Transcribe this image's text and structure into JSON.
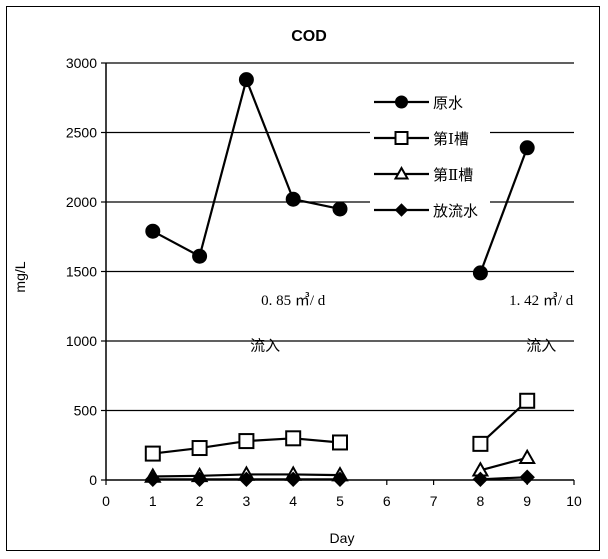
{
  "chart_data": {
    "type": "line",
    "title": "COD",
    "xlabel": "Day",
    "ylabel": "mg/L",
    "xlim": [
      0,
      10
    ],
    "ylim": [
      0,
      3000
    ],
    "xticks": [
      "0",
      "1",
      "2",
      "3",
      "4",
      "5",
      "6",
      "7",
      "8",
      "9",
      "10"
    ],
    "yticks": [
      "0",
      "500",
      "1000",
      "1500",
      "2000",
      "2500",
      "3000"
    ],
    "grid": "horizontal",
    "legend_position": "top-right",
    "series": [
      {
        "name": "原水",
        "marker": "circle",
        "segments": [
          [
            [
              1,
              1790
            ],
            [
              2,
              1610
            ],
            [
              3,
              2880
            ],
            [
              4,
              2020
            ],
            [
              5,
              1950
            ]
          ],
          [
            [
              8,
              1490
            ],
            [
              9,
              2390
            ]
          ]
        ]
      },
      {
        "name": "第Ⅰ槽",
        "marker": "square",
        "segments": [
          [
            [
              1,
              190
            ],
            [
              2,
              230
            ],
            [
              3,
              280
            ],
            [
              4,
              300
            ],
            [
              5,
              270
            ]
          ],
          [
            [
              8,
              260
            ],
            [
              9,
              570
            ]
          ]
        ]
      },
      {
        "name": "第Ⅱ槽",
        "marker": "triangle",
        "segments": [
          [
            [
              1,
              25
            ],
            [
              2,
              30
            ],
            [
              3,
              40
            ],
            [
              4,
              40
            ],
            [
              5,
              35
            ]
          ],
          [
            [
              8,
              70
            ],
            [
              9,
              160
            ]
          ]
        ]
      },
      {
        "name": "放流水",
        "marker": "diamond",
        "segments": [
          [
            [
              1,
              5
            ],
            [
              2,
              5
            ],
            [
              3,
              5
            ],
            [
              4,
              5
            ],
            [
              5,
              5
            ]
          ],
          [
            [
              8,
              5
            ],
            [
              9,
              20
            ]
          ]
        ]
      }
    ],
    "annotations": [
      {
        "text": "0. 85 ㎥/ d",
        "x": 4,
        "y": 1260
      },
      {
        "text": "流入",
        "x": 3.4,
        "y": 930
      },
      {
        "text": "1. 42 ㎥/ d",
        "x": 9.3,
        "y": 1260
      },
      {
        "text": "流入",
        "x": 9.3,
        "y": 930
      }
    ]
  }
}
